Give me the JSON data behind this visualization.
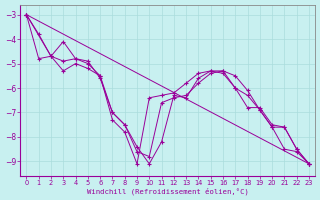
{
  "xlabel": "Windchill (Refroidissement éolien,°C)",
  "background_color": "#c8f0f0",
  "line_color": "#990099",
  "grid_color": "#aadddd",
  "spine_color": "#888888",
  "xlim": [
    -0.5,
    23.5
  ],
  "ylim": [
    -9.6,
    -2.6
  ],
  "yticks": [
    -3,
    -4,
    -5,
    -6,
    -7,
    -8,
    -9
  ],
  "xticks": [
    0,
    1,
    2,
    3,
    4,
    5,
    6,
    7,
    8,
    9,
    10,
    11,
    12,
    13,
    14,
    15,
    16,
    17,
    18,
    19,
    20,
    21,
    22,
    23
  ],
  "series1": [
    [
      0,
      -3.0
    ],
    [
      1,
      -3.8
    ],
    [
      2,
      -4.7
    ],
    [
      3,
      -4.1
    ],
    [
      4,
      -4.8
    ],
    [
      5,
      -4.9
    ],
    [
      6,
      -5.6
    ],
    [
      7,
      -7.0
    ],
    [
      8,
      -7.5
    ],
    [
      9,
      -8.4
    ],
    [
      10,
      -9.1
    ],
    [
      11,
      -8.2
    ],
    [
      12,
      -6.3
    ],
    [
      13,
      -6.4
    ],
    [
      14,
      -5.6
    ],
    [
      15,
      -5.3
    ],
    [
      16,
      -5.3
    ],
    [
      17,
      -5.5
    ],
    [
      18,
      -6.1
    ],
    [
      19,
      -6.9
    ],
    [
      20,
      -7.6
    ],
    [
      21,
      -7.6
    ],
    [
      22,
      -8.5
    ],
    [
      23,
      -9.1
    ]
  ],
  "series2": [
    [
      0,
      -3.0
    ],
    [
      1,
      -4.8
    ],
    [
      2,
      -4.7
    ],
    [
      3,
      -5.3
    ],
    [
      4,
      -5.0
    ],
    [
      5,
      -5.2
    ],
    [
      6,
      -5.5
    ],
    [
      7,
      -7.3
    ],
    [
      8,
      -7.8
    ],
    [
      9,
      -9.1
    ],
    [
      10,
      -6.4
    ],
    [
      11,
      -6.3
    ],
    [
      12,
      -6.2
    ],
    [
      13,
      -5.8
    ],
    [
      14,
      -5.4
    ],
    [
      15,
      -5.3
    ],
    [
      16,
      -5.4
    ],
    [
      17,
      -6.0
    ],
    [
      18,
      -6.3
    ],
    [
      19,
      -6.9
    ],
    [
      20,
      -7.6
    ],
    [
      21,
      -8.5
    ],
    [
      22,
      -8.6
    ],
    [
      23,
      -9.1
    ]
  ],
  "series3": [
    [
      0,
      -3.0
    ],
    [
      23,
      -9.1
    ]
  ],
  "series4": [
    [
      0,
      -3.0
    ],
    [
      2,
      -4.7
    ],
    [
      3,
      -4.9
    ],
    [
      4,
      -4.8
    ],
    [
      5,
      -5.0
    ],
    [
      6,
      -5.5
    ],
    [
      7,
      -7.0
    ],
    [
      8,
      -7.5
    ],
    [
      9,
      -8.6
    ],
    [
      10,
      -8.8
    ],
    [
      11,
      -6.6
    ],
    [
      12,
      -6.4
    ],
    [
      13,
      -6.3
    ],
    [
      14,
      -5.8
    ],
    [
      15,
      -5.4
    ],
    [
      16,
      -5.3
    ],
    [
      17,
      -6.0
    ],
    [
      18,
      -6.8
    ],
    [
      19,
      -6.8
    ],
    [
      20,
      -7.5
    ],
    [
      21,
      -7.6
    ],
    [
      22,
      -8.5
    ],
    [
      23,
      -9.1
    ]
  ]
}
